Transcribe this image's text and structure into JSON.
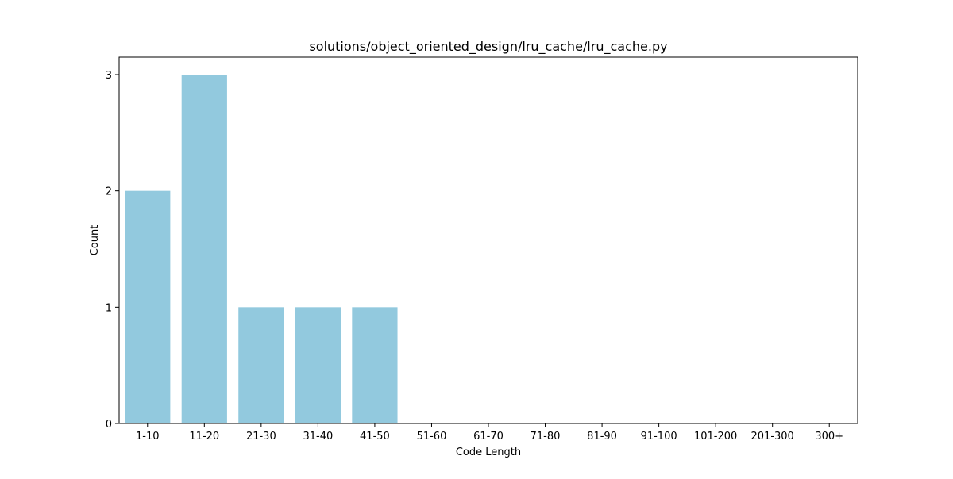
{
  "chart_data": {
    "type": "bar",
    "title": "solutions/object_oriented_design/lru_cache/lru_cache.py",
    "xlabel": "Code Length",
    "ylabel": "Count",
    "categories": [
      "1-10",
      "11-20",
      "21-30",
      "31-40",
      "41-50",
      "51-60",
      "61-70",
      "71-80",
      "81-90",
      "91-100",
      "101-200",
      "201-300",
      "300+"
    ],
    "values": [
      2,
      3,
      1,
      1,
      1,
      0,
      0,
      0,
      0,
      0,
      0,
      0,
      0
    ],
    "ylim": [
      0,
      3.15
    ],
    "yticks": [
      0,
      1,
      2,
      3
    ],
    "bar_color": "#92c9de",
    "grid": false,
    "legend": "none"
  }
}
